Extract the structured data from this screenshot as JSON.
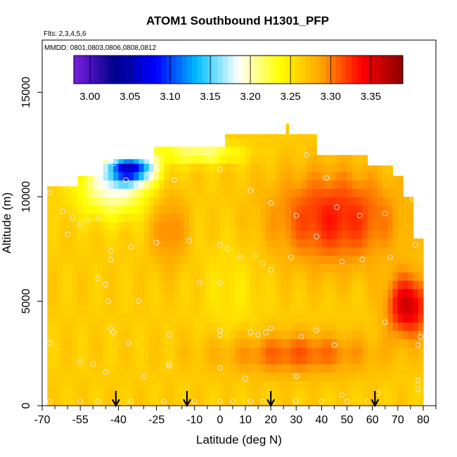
{
  "chart_data": {
    "type": "heatmap",
    "title": "ATOM1 Southbound H1301_PFP",
    "subtitle_flights": "Flts: 2,3,4,5,6",
    "subtitle_dates": "MMDD: 0801,0803,0806,0808,0812",
    "xlabel": "Latitude (deg N)",
    "ylabel": "Altitude (m)",
    "xlim": [
      -70,
      85
    ],
    "ylim": [
      0,
      17500
    ],
    "x_ticks": [
      -70,
      -55,
      -40,
      -25,
      -10,
      0,
      10,
      20,
      30,
      40,
      50,
      60,
      70,
      80
    ],
    "x_minor_ticks": [
      -65,
      -60,
      -50,
      -45,
      -35,
      -30,
      -20,
      -15,
      -5,
      5,
      15,
      25,
      35,
      45,
      55,
      65,
      75,
      85
    ],
    "y_ticks": [
      0,
      5000,
      10000,
      15000
    ],
    "colorbar": {
      "min": 2.98,
      "max": 3.39,
      "ticks": [
        3.0,
        3.05,
        3.1,
        3.15,
        3.2,
        3.25,
        3.3,
        3.35
      ],
      "tick_labels": [
        "3.00",
        "3.05",
        "3.10",
        "3.15",
        "3.20",
        "3.25",
        "3.30",
        "3.35"
      ],
      "colors": [
        "#7a1fe0",
        "#00008b",
        "#0000ff",
        "#00bfff",
        "#ffffff",
        "#ffff00",
        "#ffa500",
        "#ff0000",
        "#8b0000"
      ]
    },
    "coverage_top_altitude": [
      {
        "lat_min": -68,
        "lat_max": -55,
        "top": 10500
      },
      {
        "lat_min": -55,
        "lat_max": -45,
        "top": 11000
      },
      {
        "lat_min": -45,
        "lat_max": -25,
        "top": 11800
      },
      {
        "lat_min": -25,
        "lat_max": 2,
        "top": 12400
      },
      {
        "lat_min": 2,
        "lat_max": 38,
        "top": 13000
      },
      {
        "lat_min": 38,
        "lat_max": 58,
        "top": 12000
      },
      {
        "lat_min": 58,
        "lat_max": 68,
        "top": 11500
      },
      {
        "lat_min": 68,
        "lat_max": 73,
        "top": 11000
      },
      {
        "lat_min": 73,
        "lat_max": 76,
        "top": 10000
      },
      {
        "lat_min": 76,
        "lat_max": 80,
        "top": 8000
      }
    ],
    "field_features": [
      {
        "name": "background",
        "value": 3.265
      },
      {
        "name": "upper-left-low",
        "lat": -42,
        "alt": 10500,
        "lat_radius": 14,
        "alt_radius": 1400,
        "value": 3.19
      },
      {
        "name": "top-left-blue",
        "lat": -35,
        "alt": 11400,
        "lat_radius": 9,
        "alt_radius": 700,
        "value": 3.1
      },
      {
        "name": "top-band",
        "lat": -8,
        "alt": 12100,
        "lat_radius": 16,
        "alt_radius": 500,
        "value": 3.21
      },
      {
        "name": "upper-right-high",
        "lat": 45,
        "alt": 9000,
        "lat_radius": 24,
        "alt_radius": 2200,
        "value": 3.33
      },
      {
        "name": "right-deep-high",
        "lat": 74,
        "alt": 4800,
        "lat_radius": 8,
        "alt_radius": 1400,
        "value": 3.36
      },
      {
        "name": "lower-band-high",
        "lat": 30,
        "alt": 2500,
        "lat_radius": 30,
        "alt_radius": 1000,
        "value": 3.31
      },
      {
        "name": "mid-left-high",
        "lat": -20,
        "alt": 8500,
        "lat_radius": 7,
        "alt_radius": 1800,
        "value": 3.3
      },
      {
        "name": "center-low",
        "lat": 5,
        "alt": 5500,
        "lat_radius": 12,
        "alt_radius": 2500,
        "value": 3.25
      }
    ],
    "sample_points": [
      [
        -67,
        10200
      ],
      [
        -67,
        3000
      ],
      [
        -67,
        200
      ],
      [
        -62,
        9300
      ],
      [
        -58,
        9000
      ],
      [
        -55,
        8700
      ],
      [
        -52,
        8900
      ],
      [
        -48,
        9000
      ],
      [
        -60,
        8200
      ],
      [
        -55,
        2100
      ],
      [
        -50,
        2000
      ],
      [
        -45,
        1600
      ],
      [
        -30,
        1400
      ],
      [
        -20,
        1900
      ],
      [
        -42,
        11600
      ],
      [
        -37,
        10800
      ],
      [
        -28,
        11100
      ],
      [
        -18,
        10800
      ],
      [
        -5,
        12000
      ],
      [
        0,
        11300
      ],
      [
        12,
        10300
      ],
      [
        34,
        12000
      ],
      [
        42,
        10900
      ],
      [
        70,
        11300
      ],
      [
        76,
        9900
      ],
      [
        78,
        9600
      ],
      [
        65,
        9200
      ],
      [
        20,
        9700
      ],
      [
        30,
        9100
      ],
      [
        46,
        9500
      ],
      [
        55,
        9100
      ],
      [
        -43,
        7400
      ],
      [
        -35,
        7600
      ],
      [
        -25,
        7800
      ],
      [
        -12,
        7900
      ],
      [
        0,
        7700
      ],
      [
        3,
        7500
      ],
      [
        -43,
        7000
      ],
      [
        -48,
        6100
      ],
      [
        -45,
        5800
      ],
      [
        -44,
        5000
      ],
      [
        -32,
        5000
      ],
      [
        8,
        7100
      ],
      [
        14,
        7200
      ],
      [
        17,
        6800
      ],
      [
        20,
        6500
      ],
      [
        28,
        7100
      ],
      [
        38,
        8100
      ],
      [
        48,
        6900
      ],
      [
        56,
        7000
      ],
      [
        -8,
        5900
      ],
      [
        0,
        5900
      ],
      [
        67,
        7100
      ],
      [
        77,
        7700
      ],
      [
        -43,
        3700
      ],
      [
        -42,
        3500
      ],
      [
        -20,
        3400
      ],
      [
        0,
        3600
      ],
      [
        0,
        3400
      ],
      [
        12,
        3500
      ],
      [
        15,
        3400
      ],
      [
        18,
        3500
      ],
      [
        20,
        3700
      ],
      [
        32,
        3300
      ],
      [
        38,
        3600
      ],
      [
        45,
        2900
      ],
      [
        65,
        4000
      ],
      [
        79,
        3300
      ],
      [
        78,
        2900
      ],
      [
        -36,
        3000
      ],
      [
        -20,
        2000
      ],
      [
        0,
        1800
      ],
      [
        10,
        1300
      ],
      [
        30,
        1400
      ],
      [
        48,
        500
      ],
      [
        62,
        600
      ],
      [
        78,
        1200
      ],
      [
        78,
        800
      ],
      [
        -55,
        200
      ],
      [
        -48,
        200
      ],
      [
        -42,
        200
      ],
      [
        -35,
        200
      ],
      [
        -22,
        200
      ],
      [
        -10,
        200
      ],
      [
        0,
        200
      ],
      [
        5,
        200
      ],
      [
        12,
        200
      ],
      [
        17,
        200
      ],
      [
        20,
        200
      ],
      [
        30,
        200
      ],
      [
        40,
        200
      ],
      [
        50,
        200
      ],
      [
        58,
        200
      ]
    ],
    "arrows_at_lat": [
      -41,
      -13,
      20,
      61
    ]
  }
}
